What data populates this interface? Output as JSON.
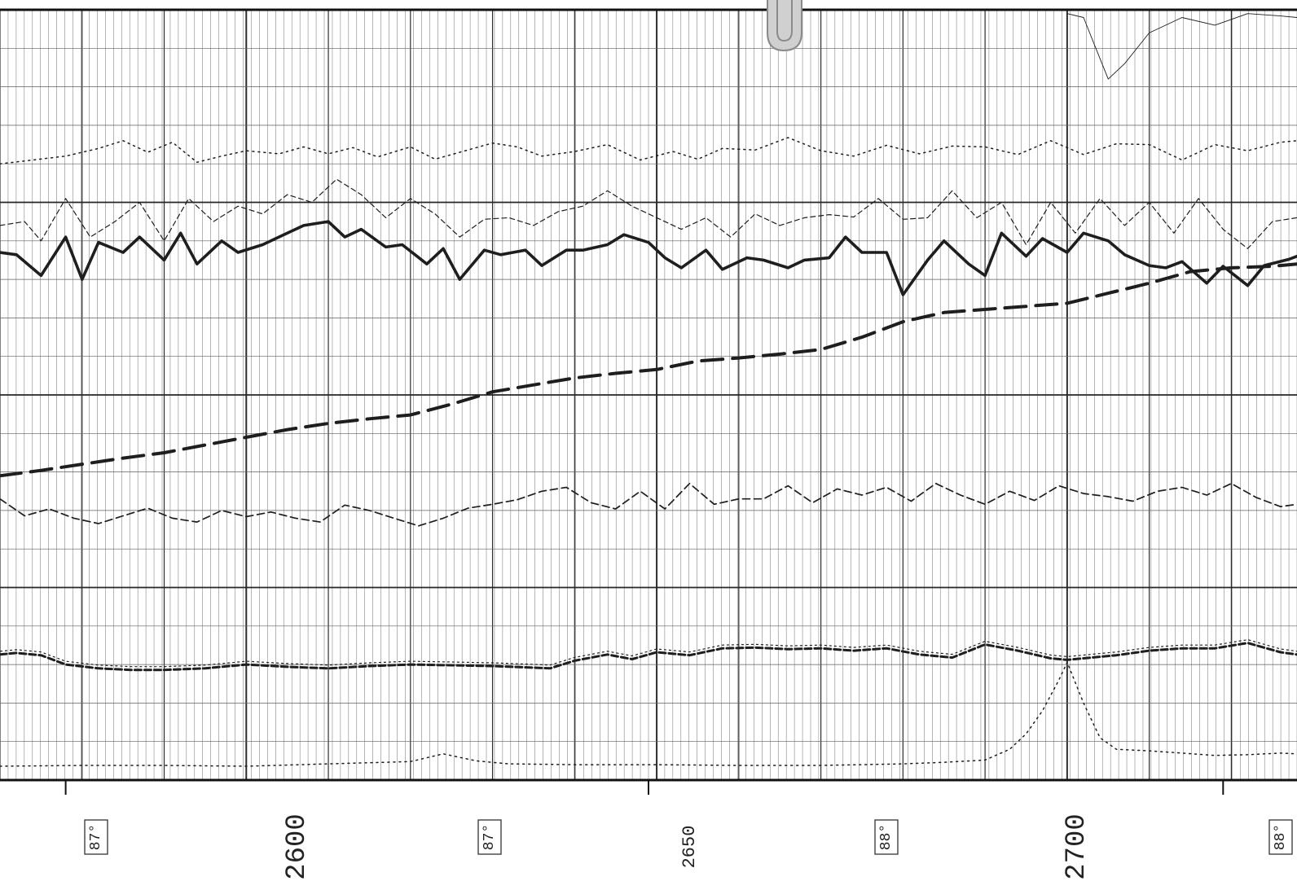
{
  "chart_data": {
    "type": "line",
    "x_axis": {
      "orientation": "horizontal",
      "range": [
        2570,
        2728
      ],
      "scale": "linear",
      "depth_labels": [
        "2600",
        "2650",
        "2700"
      ],
      "depth_label_values": [
        2600,
        2650,
        2700
      ],
      "boxed_labels": [
        "87°",
        "87°",
        "88°",
        "88°"
      ],
      "boxed_label_values": [
        2579,
        2627,
        2677,
        2727
      ],
      "tick_marks_at": [
        2578,
        2649,
        2719
      ]
    },
    "y_axis": {
      "range": [
        0,
        100
      ],
      "tick_labels": []
    },
    "grid": true,
    "series": [
      {
        "key": "top_thin_spike",
        "style": "thin-solid",
        "x": [
          2700,
          2702,
          2703.5,
          2705,
          2707,
          2710,
          2714,
          2718,
          2722,
          2726,
          2728
        ],
        "y": [
          99.5,
          99,
          95,
          91,
          93,
          97,
          99,
          98,
          99.5,
          99.2,
          99
        ]
      },
      {
        "key": "upper_dotted",
        "style": "dotted",
        "x": [
          2570,
          2574,
          2578,
          2582,
          2585,
          2588,
          2591,
          2594,
          2597,
          2600,
          2604,
          2607,
          2610,
          2613,
          2616,
          2620,
          2623,
          2626,
          2630,
          2633,
          2636,
          2640,
          2644,
          2648,
          2652,
          2655,
          2658,
          2662,
          2666,
          2670,
          2674,
          2678,
          2682,
          2686,
          2690,
          2694,
          2698,
          2702,
          2706,
          2710,
          2714,
          2718,
          2722,
          2726,
          2728
        ],
        "y": [
          80,
          80.5,
          81,
          82,
          83,
          81.5,
          82.8,
          80.2,
          81,
          81.7,
          81.3,
          82.2,
          81.3,
          82.1,
          80.9,
          82.2,
          80.6,
          81.5,
          82.7,
          82.2,
          81,
          81.6,
          82.5,
          80.5,
          81.6,
          80.6,
          82,
          81.8,
          83.4,
          81.7,
          81,
          82.4,
          81.3,
          82.3,
          82.2,
          81.2,
          83,
          81.2,
          82.6,
          82.5,
          80.5,
          82.5,
          81.7,
          82.8,
          83
        ]
      },
      {
        "key": "thin_dashed_peaks",
        "style": "thin-dashed",
        "x": [
          2570,
          2573,
          2575,
          2578,
          2581,
          2584,
          2587,
          2590,
          2593,
          2596,
          2599,
          2602,
          2605,
          2608,
          2611,
          2614,
          2617,
          2620,
          2623,
          2626,
          2629,
          2632,
          2635,
          2638,
          2641,
          2644,
          2647,
          2650,
          2653,
          2656,
          2659,
          2662,
          2665,
          2668,
          2671,
          2674,
          2677,
          2680,
          2683,
          2686,
          2689,
          2692,
          2695,
          2698,
          2701,
          2704,
          2707,
          2710,
          2713,
          2716,
          2719,
          2722,
          2725,
          2728
        ],
        "y": [
          72,
          72.5,
          70,
          75.5,
          70.5,
          72.5,
          75,
          70,
          75.5,
          72.5,
          74.5,
          73.5,
          76,
          75,
          78,
          76,
          73,
          75.5,
          73.5,
          70.5,
          72.8,
          73,
          72,
          73.8,
          74.5,
          76.5,
          74.5,
          73,
          71.5,
          73,
          70.5,
          73.5,
          72,
          73,
          73.4,
          73.1,
          75.5,
          72.8,
          73,
          76.5,
          73,
          75,
          69.5,
          75,
          71,
          75.5,
          72,
          75,
          71,
          75.5,
          71.5,
          69,
          72.5,
          73
        ]
      },
      {
        "key": "bold_solid_curve",
        "style": "thick-solid",
        "x": [
          2570,
          2572,
          2575,
          2578,
          2580,
          2582,
          2585,
          2587,
          2590,
          2592,
          2594,
          2597,
          2599,
          2602,
          2605,
          2607,
          2610,
          2612,
          2614,
          2617,
          2619,
          2622,
          2624,
          2626,
          2629,
          2631,
          2634,
          2636,
          2639,
          2641,
          2644,
          2646,
          2649,
          2651,
          2653,
          2656,
          2658,
          2661,
          2663,
          2666,
          2668,
          2671,
          2673,
          2675,
          2678,
          2680,
          2683,
          2685,
          2688,
          2690,
          2692,
          2695,
          2697,
          2700,
          2702,
          2705,
          2707,
          2710,
          2712,
          2714,
          2717,
          2719,
          2722,
          2724,
          2727,
          2728
        ],
        "y": [
          68.5,
          68.2,
          65.5,
          70.5,
          65,
          69.8,
          68.5,
          70.5,
          67.5,
          71,
          67,
          70,
          68.5,
          69.5,
          71,
          72,
          72.5,
          70.5,
          71.5,
          69.2,
          69.5,
          67,
          69,
          65,
          68.8,
          68.2,
          68.8,
          66.8,
          68.8,
          68.8,
          69.5,
          70.8,
          69.8,
          67.8,
          66.5,
          68.8,
          66.3,
          67.8,
          67.5,
          66.5,
          67.5,
          67.8,
          70.5,
          68.5,
          68.5,
          63,
          67.5,
          70,
          67,
          65.5,
          71,
          68,
          70.3,
          68.5,
          71,
          70,
          68.2,
          66.8,
          66.5,
          67.3,
          64.5,
          66.7,
          64.2,
          66.8,
          67.6,
          68
        ]
      },
      {
        "key": "long_dash_trend",
        "style": "long-dash",
        "x": [
          2570,
          2575,
          2580,
          2585,
          2590,
          2595,
          2600,
          2605,
          2610,
          2615,
          2620,
          2625,
          2630,
          2635,
          2640,
          2645,
          2650,
          2655,
          2660,
          2665,
          2670,
          2675,
          2680,
          2685,
          2690,
          2695,
          2700,
          2705,
          2710,
          2715,
          2720,
          2725,
          2728
        ],
        "y": [
          39.5,
          40.2,
          41,
          41.8,
          42.5,
          43.5,
          44.5,
          45.5,
          46.3,
          46.9,
          47.4,
          48.8,
          50.4,
          51.3,
          52.2,
          52.8,
          53.3,
          54.4,
          54.8,
          55.3,
          55.9,
          57.5,
          59.5,
          60.7,
          61.1,
          61.5,
          61.9,
          63.2,
          64.5,
          66,
          66.5,
          66.7,
          67
        ]
      },
      {
        "key": "middle_dashed_jagged",
        "style": "dashed",
        "x": [
          2570,
          2573,
          2576,
          2579,
          2582,
          2585,
          2588,
          2591,
          2594,
          2597,
          2600,
          2603,
          2606,
          2609,
          2612,
          2615,
          2618,
          2621,
          2624,
          2627,
          2630,
          2633,
          2636,
          2639,
          2642,
          2645,
          2648,
          2651,
          2654,
          2657,
          2660,
          2663,
          2666,
          2669,
          2672,
          2675,
          2678,
          2681,
          2684,
          2687,
          2690,
          2693,
          2696,
          2699,
          2702,
          2705,
          2708,
          2711,
          2714,
          2717,
          2720,
          2723,
          2726,
          2728
        ],
        "y": [
          36.5,
          34.3,
          35.2,
          34,
          33.3,
          34.3,
          35.3,
          34,
          33.5,
          35,
          34.2,
          34.8,
          34,
          33.5,
          35.7,
          35,
          34,
          33,
          34,
          35.3,
          35.8,
          36.4,
          37.5,
          38,
          36,
          35.2,
          37.5,
          35.2,
          38.5,
          35.8,
          36.5,
          36.5,
          38.2,
          36,
          37.8,
          37,
          38,
          36.2,
          38.5,
          37,
          35.8,
          37.5,
          36.3,
          38.2,
          37.2,
          36.8,
          36.2,
          37.5,
          38,
          37,
          38.5,
          36.7,
          35.5,
          35.8
        ]
      },
      {
        "key": "lower_double_dashed",
        "style": "double-dashed",
        "x": [
          2570,
          2572,
          2575,
          2578,
          2582,
          2586,
          2590,
          2595,
          2600,
          2605,
          2610,
          2615,
          2620,
          2625,
          2630,
          2635,
          2637,
          2640,
          2644,
          2647,
          2650,
          2654,
          2658,
          2662,
          2666,
          2670,
          2674,
          2678,
          2682,
          2686,
          2690,
          2694,
          2698,
          2700,
          2702,
          2706,
          2710,
          2714,
          2718,
          2722,
          2726,
          2728
        ],
        "y": [
          16.3,
          16.5,
          16.2,
          15,
          14.5,
          14.3,
          14.3,
          14.5,
          15,
          14.7,
          14.5,
          14.8,
          15,
          14.9,
          14.8,
          14.6,
          14.5,
          15.5,
          16.3,
          15.7,
          16.6,
          16.2,
          17.1,
          17.2,
          17,
          17.1,
          16.8,
          17.1,
          16.3,
          15.9,
          17.6,
          16.8,
          15.8,
          15.6,
          15.8,
          16.2,
          16.8,
          17.1,
          17.1,
          17.8,
          16.6,
          16.3
        ]
      },
      {
        "key": "bottom_dotted_bump",
        "style": "dotted",
        "x": [
          2570,
          2580,
          2590,
          2600,
          2610,
          2620,
          2624,
          2628,
          2632,
          2640,
          2650,
          2660,
          2670,
          2680,
          2685,
          2690,
          2693,
          2695,
          2697,
          2699,
          2700,
          2702,
          2704,
          2706,
          2710,
          2714,
          2718,
          2722,
          2726,
          2728
        ],
        "y": [
          1.8,
          1.9,
          1.9,
          1.8,
          2.1,
          2.4,
          3.4,
          2.5,
          2.1,
          2,
          2,
          1.9,
          1.9,
          2.1,
          2.3,
          2.6,
          4,
          6,
          9,
          13,
          15.3,
          10,
          5.5,
          4,
          3.8,
          3.5,
          3.2,
          3.3,
          3.5,
          3.4
        ]
      }
    ]
  }
}
